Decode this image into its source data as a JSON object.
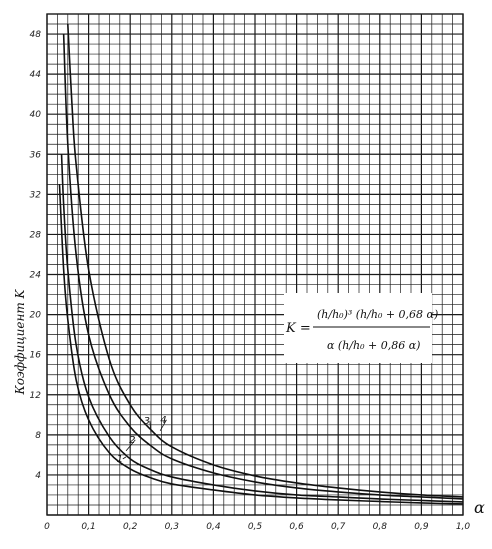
{
  "chart_data": {
    "type": "line",
    "title": "",
    "xlabel": "α",
    "ylabel": "Коэффициент K",
    "xlim": [
      0,
      1.0
    ],
    "ylim": [
      0,
      50
    ],
    "grid": true,
    "x_ticks": [
      0,
      0.1,
      0.2,
      0.3,
      0.4,
      0.5,
      0.6,
      0.7,
      0.8,
      0.9,
      1.0
    ],
    "x_tick_labels": [
      "0",
      "0,1",
      "0,2",
      "0,3",
      "0,4",
      "0,5",
      "0,6",
      "0,7",
      "0,8",
      "0,9",
      "1,0"
    ],
    "y_ticks": [
      4,
      8,
      12,
      16,
      20,
      24,
      28,
      32,
      36,
      40,
      44,
      48
    ],
    "y_tick_labels": [
      "4",
      "8",
      "12",
      "16",
      "20",
      "24",
      "28",
      "32",
      "36",
      "40",
      "44",
      "48"
    ],
    "formula": {
      "lhs": "K =",
      "numerator": "(h/h₀)³ (h/h₀ + 0,68 α)",
      "denominator": "α (h/h₀ + 0,86 α)"
    },
    "series": [
      {
        "name": "1",
        "x": [
          0.03,
          0.04,
          0.05,
          0.07,
          0.1,
          0.15,
          0.2,
          0.25,
          0.3,
          0.4,
          0.5,
          0.6,
          0.7,
          0.8,
          0.9,
          1.0
        ],
        "y": [
          33,
          24.5,
          19.5,
          13.5,
          9.5,
          6.2,
          4.6,
          3.7,
          3.1,
          2.5,
          2.0,
          1.7,
          1.5,
          1.35,
          1.2,
          1.1
        ]
      },
      {
        "name": "2",
        "x": [
          0.035,
          0.04,
          0.05,
          0.07,
          0.1,
          0.15,
          0.2,
          0.25,
          0.3,
          0.4,
          0.5,
          0.6,
          0.7,
          0.8,
          0.9,
          1.0
        ],
        "y": [
          36,
          31,
          24.5,
          17,
          11.8,
          7.8,
          5.6,
          4.5,
          3.8,
          3.0,
          2.4,
          2.0,
          1.8,
          1.6,
          1.45,
          1.3
        ]
      },
      {
        "name": "3",
        "x": [
          0.04,
          0.05,
          0.07,
          0.1,
          0.15,
          0.2,
          0.25,
          0.3,
          0.4,
          0.5,
          0.6,
          0.7,
          0.8,
          0.9,
          1.0
        ],
        "y": [
          48,
          37,
          26,
          18,
          12,
          8.8,
          6.9,
          5.6,
          4.2,
          3.3,
          2.7,
          2.3,
          2.0,
          1.8,
          1.6
        ]
      },
      {
        "name": "4",
        "x": [
          0.05,
          0.06,
          0.07,
          0.1,
          0.15,
          0.2,
          0.25,
          0.3,
          0.4,
          0.5,
          0.6,
          0.7,
          0.8,
          0.9,
          1.0
        ],
        "y": [
          49,
          41,
          35,
          24.5,
          15.5,
          11,
          8.5,
          6.8,
          5.0,
          3.9,
          3.2,
          2.7,
          2.3,
          2.0,
          1.8
        ]
      }
    ],
    "colors": {
      "line": "#111111",
      "grid": "#1a1a1a"
    }
  }
}
